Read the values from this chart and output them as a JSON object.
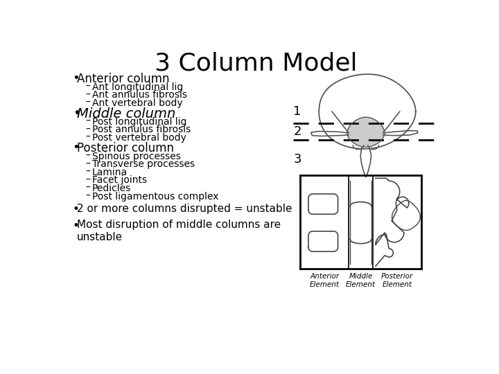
{
  "title": "3 Column Model",
  "title_fontsize": 26,
  "background_color": "#ffffff",
  "text_color": "#000000",
  "bullet1_header": "Anterior column",
  "bullet1_items": [
    "Ant longitudinal lig",
    "Ant annulus fibrosis",
    "Ant vertebral body"
  ],
  "bullet2_header": "Middle column",
  "bullet2_items": [
    "Post longitudinal lig",
    "Post annulus fibrosis",
    "Post vertebral body"
  ],
  "bullet3_header": "Posterior column",
  "bullet3_items": [
    "Spinous processes",
    "Transverse processes",
    "Lamina",
    "Facet joints",
    "Pedicles",
    "Post ligamentous complex"
  ],
  "bullet4_items": [
    "2 or more columns disrupted = unstable",
    "Most disruption of middle columns are\nunstable"
  ],
  "header_fontsize": 12,
  "item_fontsize": 10,
  "bullet4_fontsize": 11,
  "label1": "1",
  "label2": "2",
  "label3": "3",
  "ant_label": "Anterior\nElement",
  "mid_label": "Middle\nElement",
  "post_label": "Posterior\nElement"
}
